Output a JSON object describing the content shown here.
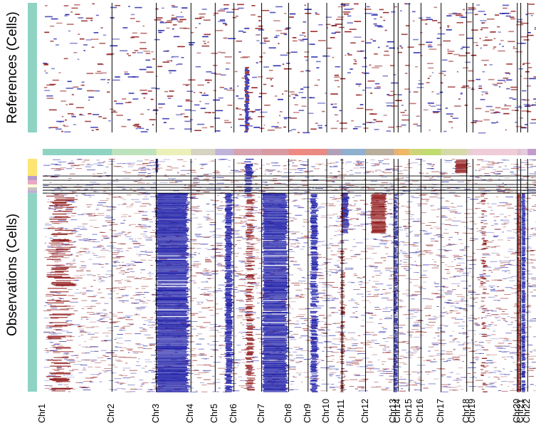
{
  "chart_data": {
    "type": "heatmap",
    "title": "",
    "panels": {
      "references": {
        "ylabel": "References (Cells)"
      },
      "observations": {
        "ylabel": "Observations (Cells)"
      }
    },
    "chromosomes": [
      {
        "label": "Chr1",
        "rel_size": 1.0,
        "color": "#8fd3c3"
      },
      {
        "label": "Chr2",
        "rel_size": 0.64,
        "color": "#bfe3bd"
      },
      {
        "label": "Chr3",
        "rel_size": 0.5,
        "color": "#ebf0b8"
      },
      {
        "label": "Chr4",
        "rel_size": 0.35,
        "color": "#d6d3c3"
      },
      {
        "label": "Chr5",
        "rel_size": 0.27,
        "color": "#bfb3d8"
      },
      {
        "label": "Chr6",
        "rel_size": 0.4,
        "color": "#d6a3ae"
      },
      {
        "label": "Chr7",
        "rel_size": 0.39,
        "color": "#d89aa0"
      },
      {
        "label": "Chr8",
        "rel_size": 0.28,
        "color": "#ee8a82"
      },
      {
        "label": "Chr9",
        "rel_size": 0.27,
        "color": "#e98a83"
      },
      {
        "label": "Chr10",
        "rel_size": 0.22,
        "color": "#b0a0b8"
      },
      {
        "label": "Chr11",
        "rel_size": 0.34,
        "color": "#8fb0cf"
      },
      {
        "label": "Chr12",
        "rel_size": 0.41,
        "color": "#b9ad9c"
      },
      {
        "label": "Chr13",
        "rel_size": 0.06,
        "color": "#e7b279"
      },
      {
        "label": "Chr14",
        "rel_size": 0.16,
        "color": "#efb866"
      },
      {
        "label": "Chr15",
        "rel_size": 0.17,
        "color": "#cfd47a"
      },
      {
        "label": "Chr16",
        "rel_size": 0.29,
        "color": "#c3dc70"
      },
      {
        "label": "Chr17",
        "rel_size": 0.37,
        "color": "#d6d9a8"
      },
      {
        "label": "Chr18",
        "rel_size": 0.09,
        "color": "#e6d0cf"
      },
      {
        "label": "Chr19",
        "rel_size": 0.64,
        "color": "#f0ccd8"
      },
      {
        "label": "Chr20",
        "rel_size": 0.05,
        "color": "#dcc3d6"
      },
      {
        "label": "Chr21",
        "rel_size": 0.1,
        "color": "#e6ccdc"
      },
      {
        "label": "Chr22",
        "rel_size": 0.12,
        "color": "#c39ccc"
      }
    ],
    "observation_groups": [
      {
        "color": "#fde572",
        "rows": 24
      },
      {
        "color": "#b59acb",
        "rows": 6
      },
      {
        "color": "#e8a8c4",
        "rows": 6
      },
      {
        "color": "#ffffd8",
        "rows": 4
      },
      {
        "color": "#c9c0c0",
        "rows": 4
      },
      {
        "color": "#bfb0d4",
        "rows": 4
      },
      {
        "color": "#8fd3c3",
        "rows": 278
      }
    ],
    "reference_group": {
      "color": "#8fd3c3"
    },
    "cnv_states": {
      "loss": "#1919a6",
      "gain": "#8e1414",
      "neutral": "#ffffff"
    },
    "notable_regions": [
      {
        "chromosome": "Chr3",
        "state": "loss",
        "cells": "most observations"
      },
      {
        "chromosome": "Chr5",
        "state": "loss",
        "cells": "most observations"
      },
      {
        "chromosome": "Chr7",
        "state": "loss",
        "cells": "most observations"
      },
      {
        "chromosome": "Chr9",
        "state": "loss",
        "cells": "most observations"
      },
      {
        "chromosome": "Chr13",
        "state": "loss",
        "cells": "most observations"
      },
      {
        "chromosome": "Chr20",
        "state": "gain",
        "cells": "most observations"
      },
      {
        "chromosome": "Chr20",
        "state": "loss",
        "cells": "most observations"
      },
      {
        "chromosome": "Chr11",
        "state": "loss",
        "cells": "first observation subgroup"
      },
      {
        "chromosome": "Chr12",
        "state": "gain",
        "cells": "first observation subgroup"
      },
      {
        "chromosome": "Chr18",
        "state": "gain",
        "cells": "top observation subgroup"
      },
      {
        "chromosome": "Chr6",
        "state": "mixed",
        "cells": "most observations"
      }
    ]
  }
}
